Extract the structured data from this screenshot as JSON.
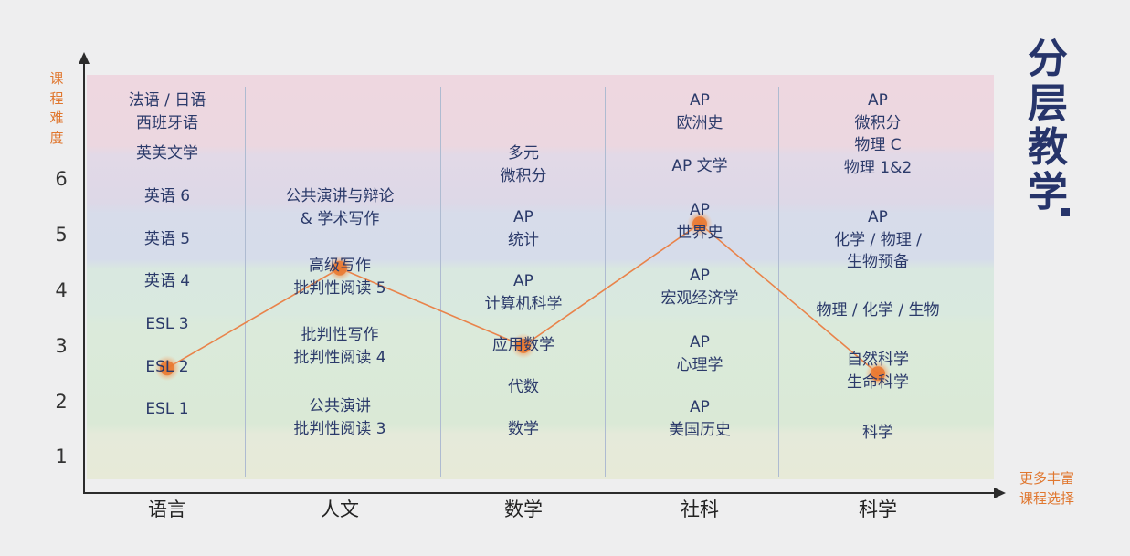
{
  "chart_data": {
    "type": "line",
    "title": "分层教学",
    "ylabel": "课程难度",
    "xlabel": "",
    "categories": [
      "语言",
      "人文",
      "数学",
      "社科",
      "科学"
    ],
    "values": [
      2.6,
      4.4,
      3.0,
      5.2,
      2.5
    ],
    "yticks": [
      1,
      2,
      3,
      4,
      5,
      6
    ],
    "ylim": [
      0.35,
      8.2
    ],
    "grid": false,
    "annotation": [
      "更多丰富",
      "课程选择"
    ],
    "courses": [
      [
        [
          "法语 / 日语",
          "西班牙语"
        ],
        [
          "英美文学"
        ],
        [
          "英语 6"
        ],
        [
          "英语 5"
        ],
        [
          "英语 4"
        ],
        [
          "ESL 3"
        ],
        [
          "ESL 2"
        ],
        [
          "ESL 1"
        ]
      ],
      [
        [
          "公共演讲与辩论",
          "& 学术写作"
        ],
        [
          "高级写作",
          "批判性阅读 5"
        ],
        [
          "批判性写作",
          "批判性阅读 4"
        ],
        [
          "公共演讲",
          "批判性阅读 3"
        ]
      ],
      [
        [
          "多元",
          "微积分"
        ],
        [
          "AP",
          "统计"
        ],
        [
          "AP",
          "计算机科学"
        ],
        [
          "应用数学"
        ],
        [
          "代数"
        ],
        [
          "数学"
        ]
      ],
      [
        [
          "AP",
          "欧洲史"
        ],
        [
          "AP 文学"
        ],
        [
          "AP",
          "世界史"
        ],
        [
          "AP",
          "宏观经济学"
        ],
        [
          "AP",
          "心理学"
        ],
        [
          "AP",
          "美国历史"
        ]
      ],
      [
        [
          "AP",
          "微积分",
          "物理 C",
          "物理 1&2"
        ],
        [
          "AP",
          "化学 / 物理 /",
          "生物预备"
        ],
        [
          "物理 / 化学 / 生物"
        ],
        [
          "自然科学",
          "生命科学"
        ],
        [
          "科学"
        ]
      ]
    ]
  },
  "colors": {
    "line": "#e9834a",
    "dot": "#e9772e",
    "text": "#2b3a6a",
    "accent": "#e0772f",
    "title": "#26346a"
  }
}
